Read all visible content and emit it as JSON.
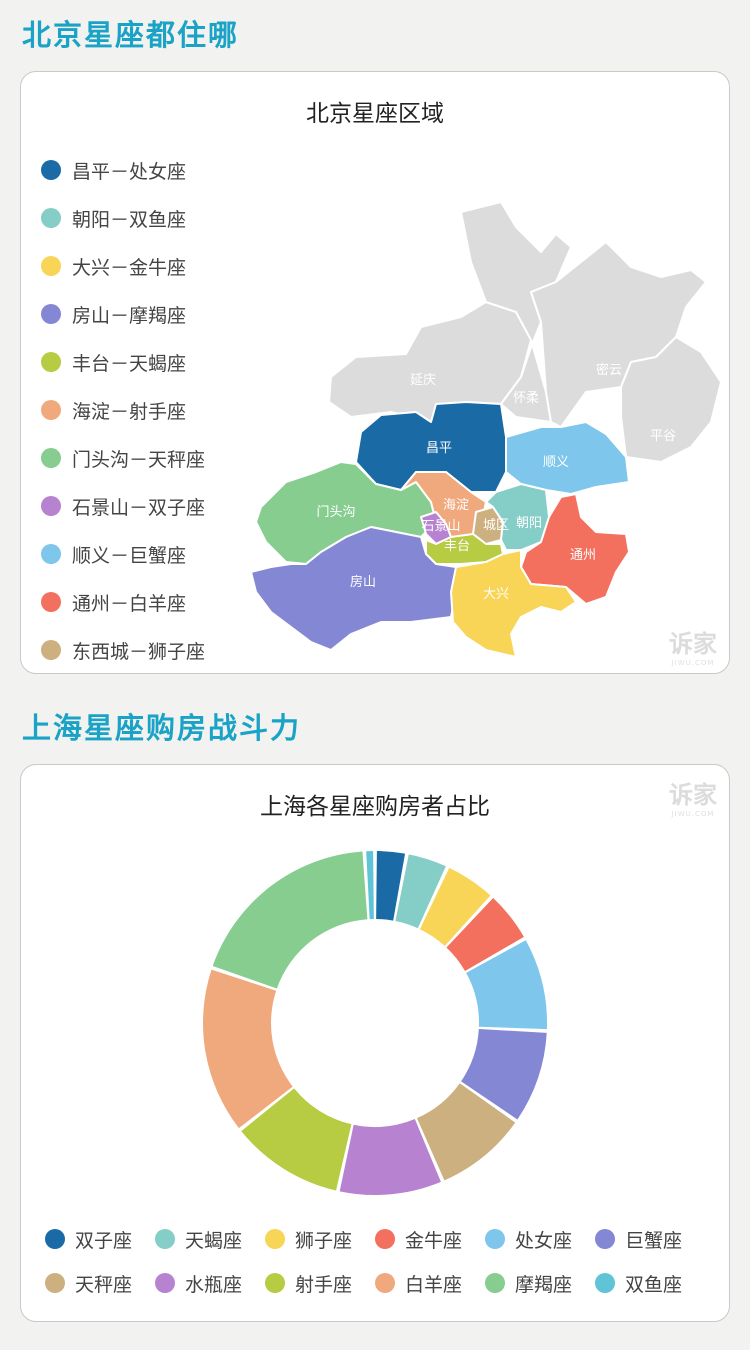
{
  "section1": {
    "heading": "北京星座都住哪",
    "card_title": "北京星座区域",
    "legend": [
      {
        "text": "昌平－处女座",
        "color": "#1a6aa6"
      },
      {
        "text": "朝阳－双鱼座",
        "color": "#85cdc7"
      },
      {
        "text": "大兴－金牛座",
        "color": "#f8d457"
      },
      {
        "text": "房山－摩羯座",
        "color": "#8487d4"
      },
      {
        "text": "丰台－天蝎座",
        "color": "#b7cb43"
      },
      {
        "text": "海淀－射手座",
        "color": "#f0a97c"
      },
      {
        "text": "门头沟－天秤座",
        "color": "#86cd8f"
      },
      {
        "text": "石景山－双子座",
        "color": "#b783d1"
      },
      {
        "text": "顺义－巨蟹座",
        "color": "#7ec6ec"
      },
      {
        "text": "通州－白羊座",
        "color": "#f36f5e"
      },
      {
        "text": "东西城－狮子座",
        "color": "#cdb07f"
      }
    ],
    "map_labels": {
      "yanqing": "延庆",
      "huairou": "怀柔",
      "miyun": "密云",
      "pinggu": "平谷",
      "changping": "昌平",
      "shunyi": "顺义",
      "mentougou": "门头沟",
      "haidian": "海淀",
      "shijingshan": "石景山",
      "chengqu": "城区",
      "chaoyang": "朝阳",
      "fengtai": "丰台",
      "tongzhou": "通州",
      "fangshan": "房山",
      "daxing": "大兴"
    },
    "grey_color": "#dcdcdc",
    "watermark": "诉家",
    "watermark_sub": "JIWU.COM"
  },
  "section2": {
    "heading": "上海星座购房战斗力",
    "watermark": "诉家",
    "watermark_sub": "JIWU.COM"
  },
  "chart_data": {
    "type": "pie",
    "title": "上海各星座购房者占比",
    "donut": true,
    "legend_position": "bottom",
    "categories": [
      "双子座",
      "天蝎座",
      "狮子座",
      "金牛座",
      "处女座",
      "巨蟹座",
      "天秤座",
      "水瓶座",
      "射手座",
      "白羊座",
      "摩羯座",
      "双鱼座"
    ],
    "values": [
      3.0,
      4.0,
      5.0,
      5.0,
      9.0,
      9.0,
      9.0,
      10.0,
      11.0,
      16.0,
      19.0,
      1.0
    ],
    "colors": [
      "#1a6aa6",
      "#85cdc7",
      "#f8d457",
      "#f36f5e",
      "#7ec6ec",
      "#8487d4",
      "#cdb07f",
      "#b783d1",
      "#b7cb43",
      "#f0a97c",
      "#86cd8f",
      "#5ec4d6"
    ]
  }
}
